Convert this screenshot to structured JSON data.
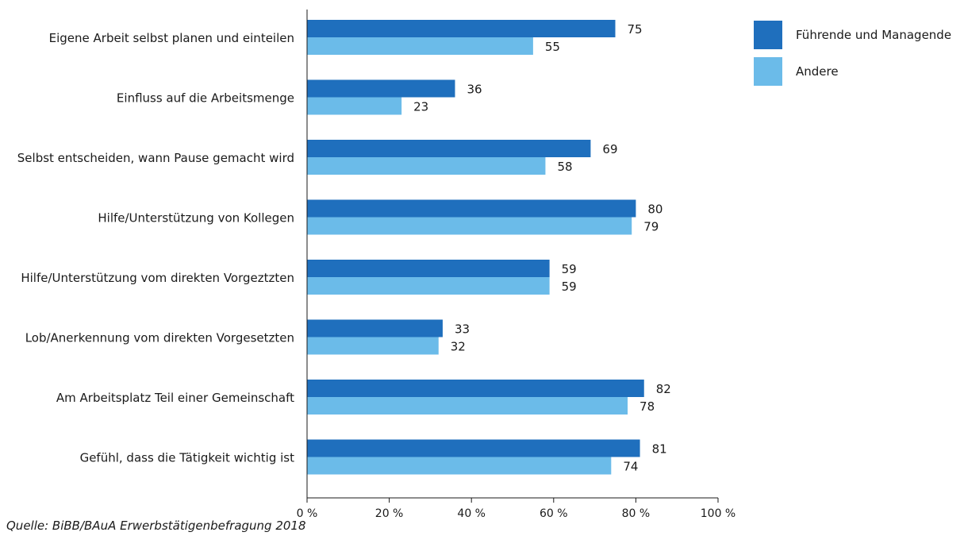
{
  "chart_data": {
    "type": "bar",
    "orientation": "horizontal",
    "categories": [
      "Eigene Arbeit selbst planen und einteilen",
      "Einfluss auf die Arbeitsmenge",
      "Selbst entscheiden, wann Pause gemacht wird",
      "Hilfe/Unterstützung von Kollegen",
      "Hilfe/Unterstützung vom direkten Vorgeztzten",
      "Lob/Anerkennung vom direkten Vorgesetzten",
      "Am Arbeitsplatz Teil einer Gemeinschaft",
      "Gefühl, dass die Tätigkeit wichtig ist"
    ],
    "series": [
      {
        "name": "Führende und Managende",
        "color": "#1f6fbd",
        "values": [
          75,
          36,
          69,
          80,
          59,
          33,
          82,
          81
        ]
      },
      {
        "name": "Andere",
        "color": "#6bbbe9",
        "values": [
          55,
          23,
          58,
          79,
          59,
          32,
          78,
          74
        ]
      }
    ],
    "xlim": [
      0,
      100
    ],
    "xticks": [
      0,
      20,
      40,
      60,
      80,
      100
    ],
    "xtick_labels": [
      "0 %",
      "20 %",
      "40 %",
      "60 %",
      "80 %",
      "100 %"
    ],
    "grid": false,
    "legend_position": "top-right",
    "title": "",
    "xlabel": "",
    "ylabel": ""
  },
  "source_note": "Quelle: BiBB/BAuA Erwerbstätigenbefragung 2018"
}
